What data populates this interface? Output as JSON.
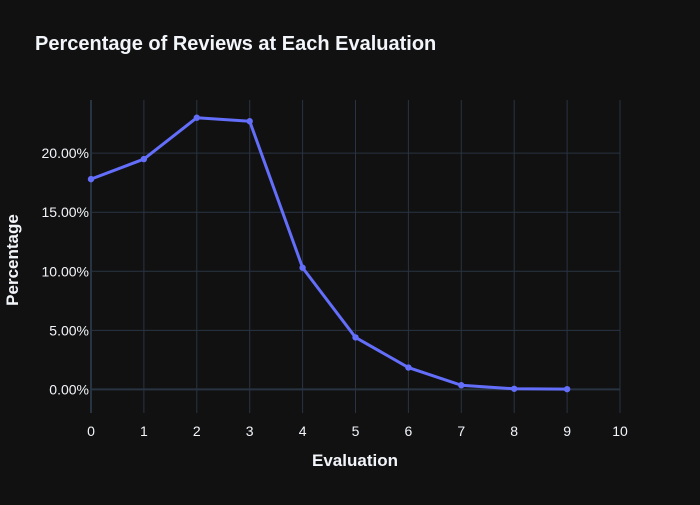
{
  "chart_data": {
    "type": "line",
    "title": "Percentage of Reviews at Each Evaluation",
    "xlabel": "Evaluation",
    "ylabel": "Percentage",
    "x": [
      0,
      1,
      2,
      3,
      4,
      5,
      6,
      7,
      8,
      9
    ],
    "y_percent": [
      17.8,
      19.5,
      23.0,
      22.7,
      10.3,
      4.4,
      1.85,
      0.35,
      0.05,
      0.02
    ],
    "xlim": [
      0,
      10
    ],
    "ylim": [
      -2.0,
      24.5
    ],
    "x_ticks": [
      "0",
      "1",
      "2",
      "3",
      "4",
      "5",
      "6",
      "7",
      "8",
      "9",
      "10"
    ],
    "y_ticks": [
      "0.00%",
      "5.00%",
      "10.00%",
      "15.00%",
      "20.00%"
    ],
    "y_tick_values": [
      0,
      5,
      10,
      15,
      20
    ],
    "grid": true,
    "colors": {
      "background": "#111111",
      "grid": "#283442",
      "zeroline": "#283442",
      "line": "#636efa",
      "text": "#f2f5fa"
    }
  }
}
